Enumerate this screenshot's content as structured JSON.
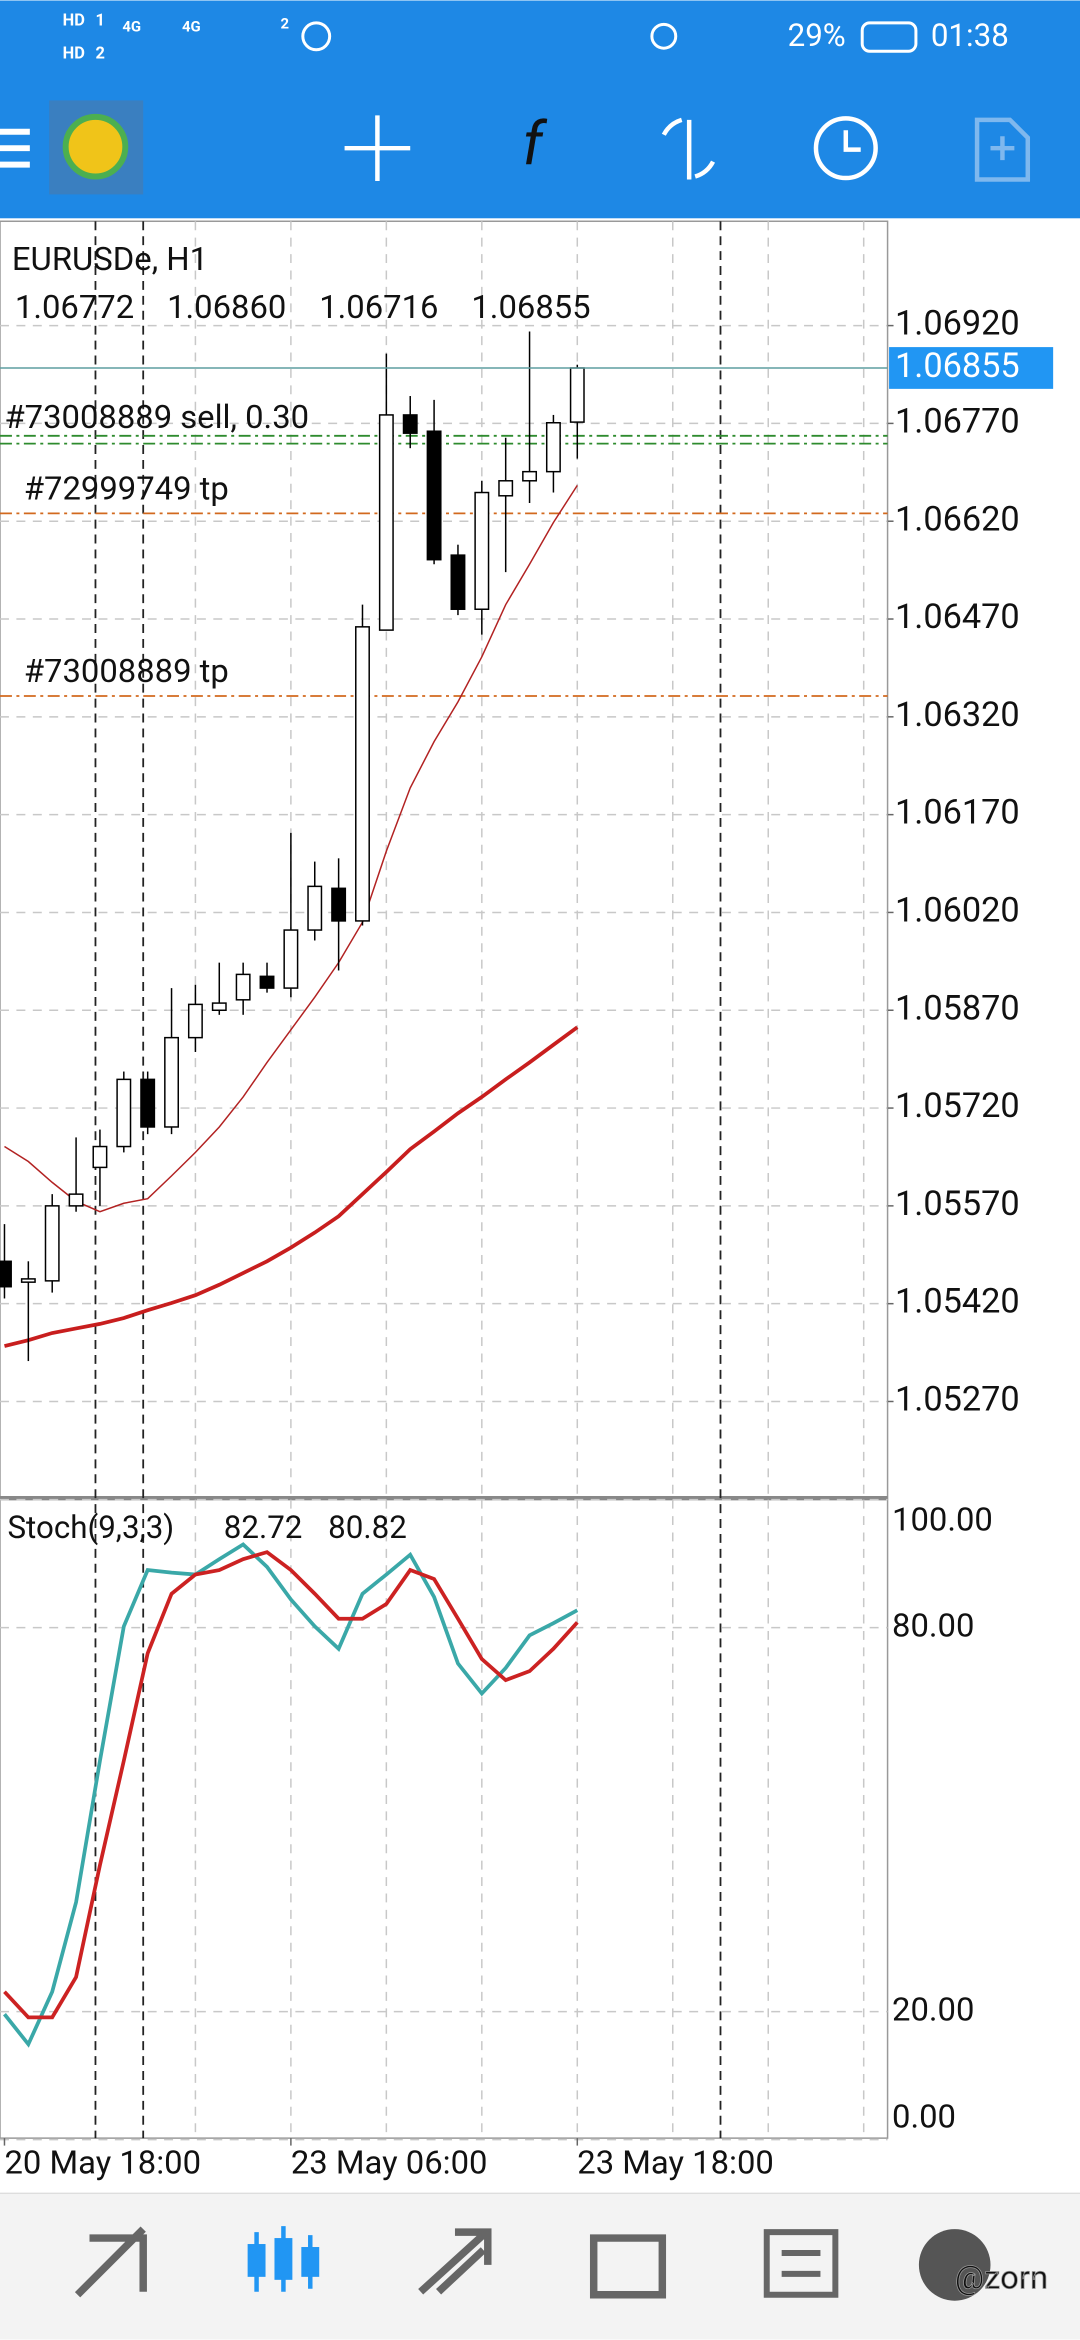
{
  "status_bar": {
    "sim_1": "HD",
    "sim_1_slot": "1",
    "sim_2": "HD",
    "sim_2_slot": "2",
    "network_1": "4G",
    "network_2": "4G",
    "hotspot_count": "2",
    "battery": "29%",
    "time": "01:38"
  },
  "toolbar": {
    "function_icon": "f"
  },
  "watermark": "@zorn",
  "chart_data": [
    {
      "type": "candlestick",
      "title": "EURUSDe, H1",
      "ohlc_labels": [
        "1.06772",
        "1.06860",
        "1.06716",
        "1.06855"
      ],
      "open": [
        1.05485,
        1.05453,
        1.05455,
        1.0557,
        1.05629,
        1.05661,
        1.05764,
        1.05691,
        1.05828,
        1.0587,
        1.05886,
        1.05922,
        1.05904,
        1.05993,
        1.06057,
        1.06007,
        1.06453,
        1.06783,
        1.06758,
        1.06568,
        1.06485,
        1.06659,
        1.06682,
        1.06696,
        1.06772
      ],
      "high": [
        1.05542,
        1.05485,
        1.05588,
        1.05675,
        1.05687,
        1.05776,
        1.05776,
        1.05904,
        1.05909,
        1.05943,
        1.05943,
        1.05943,
        1.06142,
        1.06098,
        1.06103,
        1.06492,
        1.06877,
        1.06812,
        1.06806,
        1.06584,
        1.06682,
        1.06748,
        1.06911,
        1.06783,
        1.0686
      ],
      "low": [
        1.05428,
        1.05332,
        1.05437,
        1.05561,
        1.0557,
        1.05652,
        1.0568,
        1.0568,
        1.05806,
        1.05863,
        1.05863,
        1.05897,
        1.0589,
        1.05977,
        1.05931,
        1.06,
        1.06453,
        1.06732,
        1.06554,
        1.06476,
        1.06446,
        1.06542,
        1.06648,
        1.06664,
        1.06716
      ],
      "close": [
        1.05446,
        1.05458,
        1.0557,
        1.05588,
        1.05661,
        1.05764,
        1.05691,
        1.05828,
        1.05879,
        1.05881,
        1.05925,
        1.05904,
        1.05993,
        1.0606,
        1.06007,
        1.06458,
        1.06783,
        1.06755,
        1.06561,
        1.06485,
        1.06664,
        1.06682,
        1.06696,
        1.06771,
        1.06855
      ],
      "up_color": "#ffffff",
      "down_color": "#000000",
      "moving_averages": [
        {
          "color": "#b22222",
          "width": 1,
          "values": [
            1.05661,
            1.05638,
            1.05606,
            1.05577,
            1.05561,
            1.05574,
            1.05581,
            1.05616,
            1.05652,
            1.05691,
            1.05737,
            1.0579,
            1.0584,
            1.0589,
            1.05943,
            1.06005,
            1.06114,
            1.06211,
            1.06282,
            1.06343,
            1.06412,
            1.06492,
            1.06554,
            1.06618,
            1.06675
          ]
        },
        {
          "color": "#c81e1e",
          "width": 2.5,
          "values": [
            1.05355,
            1.05364,
            1.05375,
            1.05382,
            1.05389,
            1.05398,
            1.0541,
            1.05421,
            1.05433,
            1.05449,
            1.05467,
            1.05485,
            1.05506,
            1.05529,
            1.05554,
            1.05588,
            1.05622,
            1.05657,
            1.05684,
            1.05712,
            1.05737,
            1.05764,
            1.0579,
            1.05817,
            1.05844
          ]
        }
      ],
      "bid_line_color": "#5f9ea0",
      "bid_box_color": "#2196f3",
      "levels": [
        {
          "label": "#73008889 sell, 0.30",
          "value": 1.06751,
          "color": "#2e8b2e"
        },
        {
          "value": 1.06739,
          "color": "#2e8b2e"
        },
        {
          "label": "#72999749 tp",
          "value": 1.06632,
          "color": "#d2691e"
        },
        {
          "label": "#73008889 tp",
          "value": 1.06352,
          "color": "#d2691e"
        }
      ],
      "xlim": [
        -0.1875,
        37
      ],
      "xticks": [
        {
          "value": 0,
          "label": "20 May 18:00"
        },
        {
          "value": 12,
          "label": "23 May 06:00"
        },
        {
          "value": 24,
          "label": "23 May 18:00"
        }
      ],
      "ylim": [
        1.05124,
        1.0708
      ],
      "yticks": [
        {
          "value": 1.0692,
          "label": "1.06920"
        },
        {
          "value": 1.0677,
          "label": "1.06770"
        },
        {
          "value": 1.0662,
          "label": "1.06620"
        },
        {
          "value": 1.0647,
          "label": "1.06470"
        },
        {
          "value": 1.0632,
          "label": "1.06320"
        },
        {
          "value": 1.0617,
          "label": "1.06170"
        },
        {
          "value": 1.0602,
          "label": "1.06020"
        },
        {
          "value": 1.0587,
          "label": "1.05870"
        },
        {
          "value": 1.0572,
          "label": "1.05720"
        },
        {
          "value": 1.0557,
          "label": "1.05570"
        },
        {
          "value": 1.0542,
          "label": "1.05420"
        },
        {
          "value": 1.0527,
          "label": "1.05270"
        }
      ],
      "grid": true
    },
    {
      "type": "line",
      "title": "Stoch(9,3,3)",
      "series": [
        {
          "color": "#3aa8a8",
          "values": [
            19.6,
            14.9,
            23.1,
            37.1,
            59.2,
            80.2,
            89.0,
            88.6,
            88.3,
            90.7,
            93.0,
            89.5,
            84.4,
            80.2,
            76.7,
            85.3,
            88.3,
            91.4,
            84.8,
            74.4,
            69.7,
            73.7,
            78.8,
            80.7,
            82.72
          ]
        },
        {
          "color": "#cc2222",
          "values": [
            23.1,
            19.1,
            19.1,
            25.4,
            42.9,
            59.2,
            76.0,
            85.3,
            88.3,
            89.0,
            90.7,
            91.8,
            89.0,
            85.3,
            81.4,
            81.4,
            83.7,
            89.0,
            87.6,
            81.4,
            75.1,
            71.8,
            73.2,
            76.7,
            80.82
          ]
        }
      ],
      "xlim": [
        -0.1875,
        37
      ],
      "ylim": [
        0,
        100
      ],
      "yticks": [
        {
          "value": 0,
          "label": "0.00"
        },
        {
          "value": 20,
          "label": "20.00"
        },
        {
          "value": 80,
          "label": "80.00"
        },
        {
          "value": 100,
          "label": "100.00"
        }
      ],
      "grid": true
    }
  ]
}
